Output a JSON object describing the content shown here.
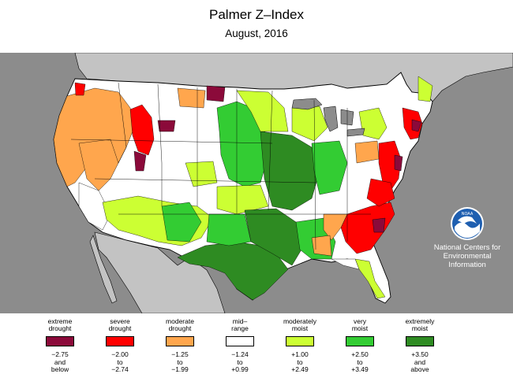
{
  "header": {
    "title": "Palmer Z–Index",
    "subtitle": "August, 2016"
  },
  "map": {
    "background_color": "#8c8c8c",
    "land_color": "#ffffff",
    "neighbor_land_color": "#c3c3c3",
    "water_color": "#8c8c8c",
    "border_color": "#000000"
  },
  "legend": {
    "items": [
      {
        "label": [
          "extreme",
          "drought"
        ],
        "color": "#8b0a3a",
        "range": [
          "−2.75",
          "and",
          "below"
        ]
      },
      {
        "label": [
          "severe",
          "drought"
        ],
        "color": "#ff0000",
        "range": [
          "−2.00",
          "to",
          "−2.74"
        ]
      },
      {
        "label": [
          "moderate",
          "drought"
        ],
        "color": "#ffa64d",
        "range": [
          "−1.25",
          "to",
          "−1.99"
        ]
      },
      {
        "label": [
          "mid–",
          "range"
        ],
        "color": "#ffffff",
        "range": [
          "−1.24",
          "to",
          "+0.99"
        ]
      },
      {
        "label": [
          "moderately",
          "moist"
        ],
        "color": "#ccff33",
        "range": [
          "+1.00",
          "to",
          "+2.49"
        ]
      },
      {
        "label": [
          "very",
          "moist"
        ],
        "color": "#33cc33",
        "range": [
          "+2.50",
          "to",
          "+3.49"
        ]
      },
      {
        "label": [
          "extremely",
          "moist"
        ],
        "color": "#2e8b22",
        "range": [
          "+3.50",
          "and",
          "above"
        ]
      }
    ]
  },
  "branding": {
    "logo_name": "noaa-logo",
    "logo_text": "NOAA",
    "agency_lines": [
      "National Centers for",
      "Environmental",
      "Information"
    ]
  }
}
